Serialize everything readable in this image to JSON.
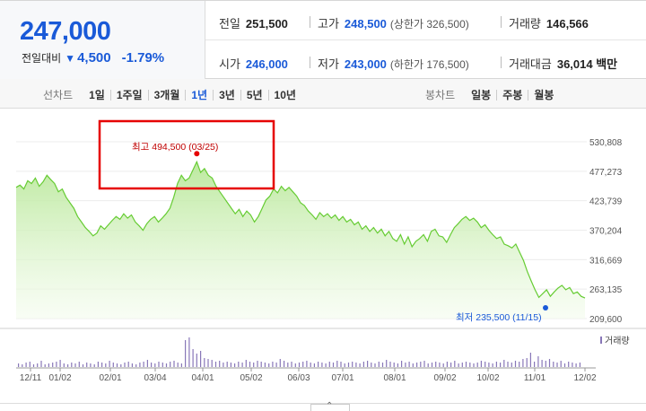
{
  "quote": {
    "price": "247,000",
    "change_label": "전일대비",
    "change_value": "4,500",
    "change_pct": "-1.79%"
  },
  "stats": {
    "prev_label": "전일",
    "prev_value": "251,500",
    "high_label": "고가",
    "high_value": "248,500",
    "high_limit": "(상한가 326,500)",
    "volume_label": "거래량",
    "volume_value": "146,566",
    "open_label": "시가",
    "open_value": "246,000",
    "low_label": "저가",
    "low_value": "243,000",
    "low_limit": "(하한가 176,500)",
    "amount_label": "거래대금",
    "amount_value": "36,014 백만"
  },
  "line_tabs": {
    "label": "선차트",
    "items": [
      "1일",
      "1주일",
      "3개월",
      "1년",
      "3년",
      "5년",
      "10년"
    ],
    "active": "1년"
  },
  "candle_tabs": {
    "label": "봉차트",
    "items": [
      "일봉",
      "주봉",
      "월봉"
    ]
  },
  "colors": {
    "accent": "#1a5ad8",
    "line": "#66cc33",
    "fill_top": "#b9e89a",
    "high_marker": "#e60000",
    "low_marker": "#1a5ad8",
    "volume_bar": "#8877b8",
    "highlight_box": "#e60000"
  },
  "chart_data": {
    "type": "area",
    "y_ticks": [
      "530,808",
      "477,273",
      "423,739",
      "370,204",
      "316,669",
      "263,135",
      "209,600"
    ],
    "ylim": [
      209600,
      530808
    ],
    "x_ticks": [
      "12/11",
      "01/02",
      "02/01",
      "03/04",
      "04/01",
      "05/02",
      "06/03",
      "07/01",
      "08/01",
      "09/02",
      "10/02",
      "11/01",
      "12/02"
    ],
    "high_annotation": "최고 494,500 (03/25)",
    "low_annotation": "최저 235,500 (11/15)",
    "volume_legend": "거래량",
    "series": [
      {
        "values": [
          448000,
          452000,
          445000,
          460000,
          455000,
          465000,
          450000,
          458000,
          470000,
          462000,
          455000,
          440000,
          445000,
          430000,
          420000,
          410000,
          395000,
          385000,
          375000,
          368000,
          360000,
          365000,
          378000,
          372000,
          380000,
          388000,
          395000,
          390000,
          400000,
          392000,
          398000,
          385000,
          378000,
          370000,
          382000,
          390000,
          395000,
          385000,
          392000,
          400000,
          410000,
          430000,
          455000,
          470000,
          460000,
          465000,
          480000,
          494500,
          475000,
          482000,
          470000,
          465000,
          450000,
          440000,
          430000,
          420000,
          410000,
          400000,
          408000,
          395000,
          405000,
          398000,
          385000,
          395000,
          410000,
          425000,
          432000,
          445000,
          438000,
          450000,
          442000,
          448000,
          440000,
          432000,
          420000,
          415000,
          405000,
          398000,
          390000,
          402000,
          395000,
          400000,
          392000,
          398000,
          388000,
          395000,
          385000,
          390000,
          380000,
          385000,
          372000,
          378000,
          368000,
          375000,
          365000,
          372000,
          360000,
          368000,
          355000,
          350000,
          362000,
          345000,
          358000,
          340000,
          350000,
          355000,
          362000,
          350000,
          368000,
          372000,
          360000,
          358000,
          348000,
          362000,
          375000,
          382000,
          390000,
          395000,
          388000,
          392000,
          385000,
          375000,
          380000,
          370000,
          362000,
          355000,
          358000,
          345000,
          342000,
          338000,
          345000,
          330000,
          315000,
          295000,
          278000,
          262000,
          248000,
          255000,
          262000,
          250000,
          258000,
          265000,
          270000,
          262000,
          266000,
          255000,
          258000,
          250000,
          247000
        ]
      }
    ]
  }
}
